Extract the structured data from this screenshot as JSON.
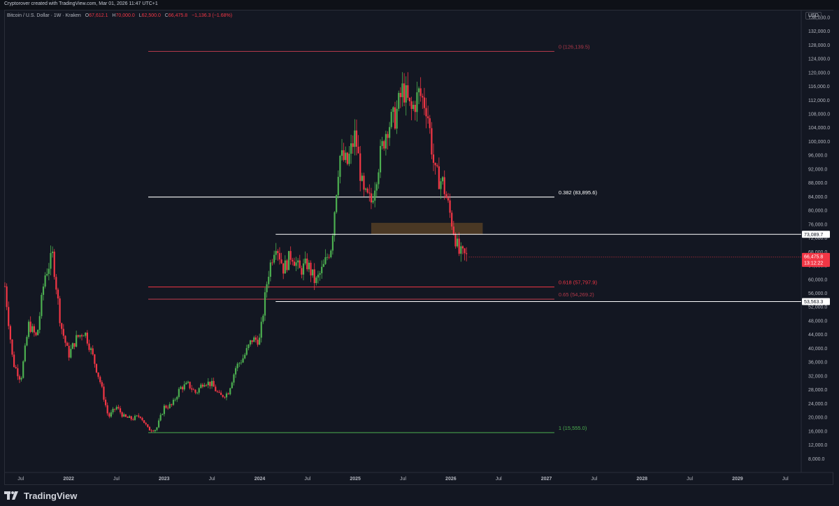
{
  "credit": "Cryptorover created with TradingView.com, Mar 01, 2026 11:47 UTC+1",
  "legend": {
    "symbol": "Bitcoin / U.S. Dollar · 1W · Kraken",
    "o_label": "O",
    "o_value": "67,612.1",
    "h_label": "H",
    "h_value": "70,000.0",
    "l_label": "L",
    "l_value": "62,500.0",
    "c_label": "C",
    "c_value": "66,475.8",
    "change": "−1,136.3 (−1.68%)"
  },
  "currency": "USD",
  "brand": "TradingView",
  "colors": {
    "background": "#131722",
    "up": "#26a69a",
    "up_candle": "#4caf50",
    "down": "#f23645",
    "fib_top": "#b2394a",
    "fib_mid": "#ffffff",
    "fib_low": "#f23645",
    "fib_green": "#4caf50",
    "zone": "#5d4425"
  },
  "chart_data": {
    "type": "candlestick",
    "timeframe": "1W",
    "x_ticks": [
      "Jul",
      "2022",
      "Jul",
      "2023",
      "Jul",
      "2024",
      "Jul",
      "2025",
      "Jul",
      "2026",
      "Jul",
      "2027",
      "Jul",
      "2028",
      "Jul",
      "2029",
      "Jul"
    ],
    "y_ticks": [
      "136,000.0",
      "132,000.0",
      "128,000.0",
      "124,000.0",
      "120,000.0",
      "116,000.0",
      "112,000.0",
      "108,000.0",
      "104,000.0",
      "100,000.0",
      "96,000.0",
      "92,000.0",
      "88,000.0",
      "84,000.0",
      "80,000.0",
      "76,000.0",
      "72,000.0",
      "68,000.0",
      "64,000.0",
      "60,000.0",
      "56,000.0",
      "52,000.0",
      "48,000.0",
      "44,000.0",
      "40,000.0",
      "36,000.0",
      "32,000.0",
      "28,000.0",
      "24,000.0",
      "20,000.0",
      "16,000.0",
      "12,000.0",
      "8,000.0"
    ],
    "y_range": [
      4000,
      138000
    ],
    "x_range": [
      "2021-05",
      "2029-09"
    ],
    "fib_levels": [
      {
        "label": "0 (126,139.5)",
        "value": 126139.5
      },
      {
        "label": "0.382 (83,895.6)",
        "value": 83895.6
      },
      {
        "label": "0.618 (57,797.9)",
        "value": 57797.9
      },
      {
        "label": "0.65 (54,269.2)",
        "value": 54269.2
      },
      {
        "label": "1 (15,555.0)",
        "value": 15555.0
      }
    ],
    "horizontal_lines": [
      {
        "label": "73,089.7",
        "value": 73089.7
      },
      {
        "label": "53,563.3",
        "value": 53563.3
      }
    ],
    "zone": {
      "from": 73089.7,
      "to": 76400,
      "start": "2025-03",
      "end": "2026-05"
    },
    "last_price": {
      "label": "66,475.8",
      "countdown": "13:12:22",
      "value": 66475.8
    },
    "price_path": [
      [
        "2021-05",
        58000
      ],
      [
        "2021-06",
        36000
      ],
      [
        "2021-07",
        31000
      ],
      [
        "2021-08",
        47000
      ],
      [
        "2021-09",
        43000
      ],
      [
        "2021-10",
        61000
      ],
      [
        "2021-11",
        67000
      ],
      [
        "2021-12",
        47000
      ],
      [
        "2022-01",
        38000
      ],
      [
        "2022-02",
        43000
      ],
      [
        "2022-03",
        45000
      ],
      [
        "2022-04",
        38000
      ],
      [
        "2022-05",
        30000
      ],
      [
        "2022-06",
        20000
      ],
      [
        "2022-07",
        23000
      ],
      [
        "2022-08",
        20000
      ],
      [
        "2022-09",
        19500
      ],
      [
        "2022-10",
        20500
      ],
      [
        "2022-11",
        16500
      ],
      [
        "2022-12",
        16500
      ],
      [
        "2023-01",
        23000
      ],
      [
        "2023-02",
        23500
      ],
      [
        "2023-03",
        28500
      ],
      [
        "2023-04",
        29500
      ],
      [
        "2023-05",
        27000
      ],
      [
        "2023-06",
        30500
      ],
      [
        "2023-07",
        29500
      ],
      [
        "2023-08",
        26000
      ],
      [
        "2023-09",
        27000
      ],
      [
        "2023-10",
        34500
      ],
      [
        "2023-11",
        37500
      ],
      [
        "2023-12",
        42500
      ],
      [
        "2024-01",
        42500
      ],
      [
        "2024-02",
        61000
      ],
      [
        "2024-03",
        71000
      ],
      [
        "2024-04",
        63000
      ],
      [
        "2024-05",
        67500
      ],
      [
        "2024-06",
        62500
      ],
      [
        "2024-07",
        64500
      ],
      [
        "2024-08",
        59000
      ],
      [
        "2024-09",
        63500
      ],
      [
        "2024-10",
        70000
      ],
      [
        "2024-11",
        96000
      ],
      [
        "2024-12",
        93500
      ],
      [
        "2025-01",
        102000
      ],
      [
        "2025-02",
        84500
      ],
      [
        "2025-03",
        82500
      ],
      [
        "2025-04",
        94500
      ],
      [
        "2025-05",
        104500
      ],
      [
        "2025-06",
        107000
      ],
      [
        "2025-07",
        115500
      ],
      [
        "2025-08",
        108500
      ],
      [
        "2025-09",
        114000
      ],
      [
        "2025-10",
        110000
      ],
      [
        "2025-11",
        90500
      ],
      [
        "2025-12",
        88000
      ],
      [
        "2026-01",
        78000
      ],
      [
        "2026-02",
        67600
      ],
      [
        "2026-03",
        66475.8
      ]
    ]
  }
}
